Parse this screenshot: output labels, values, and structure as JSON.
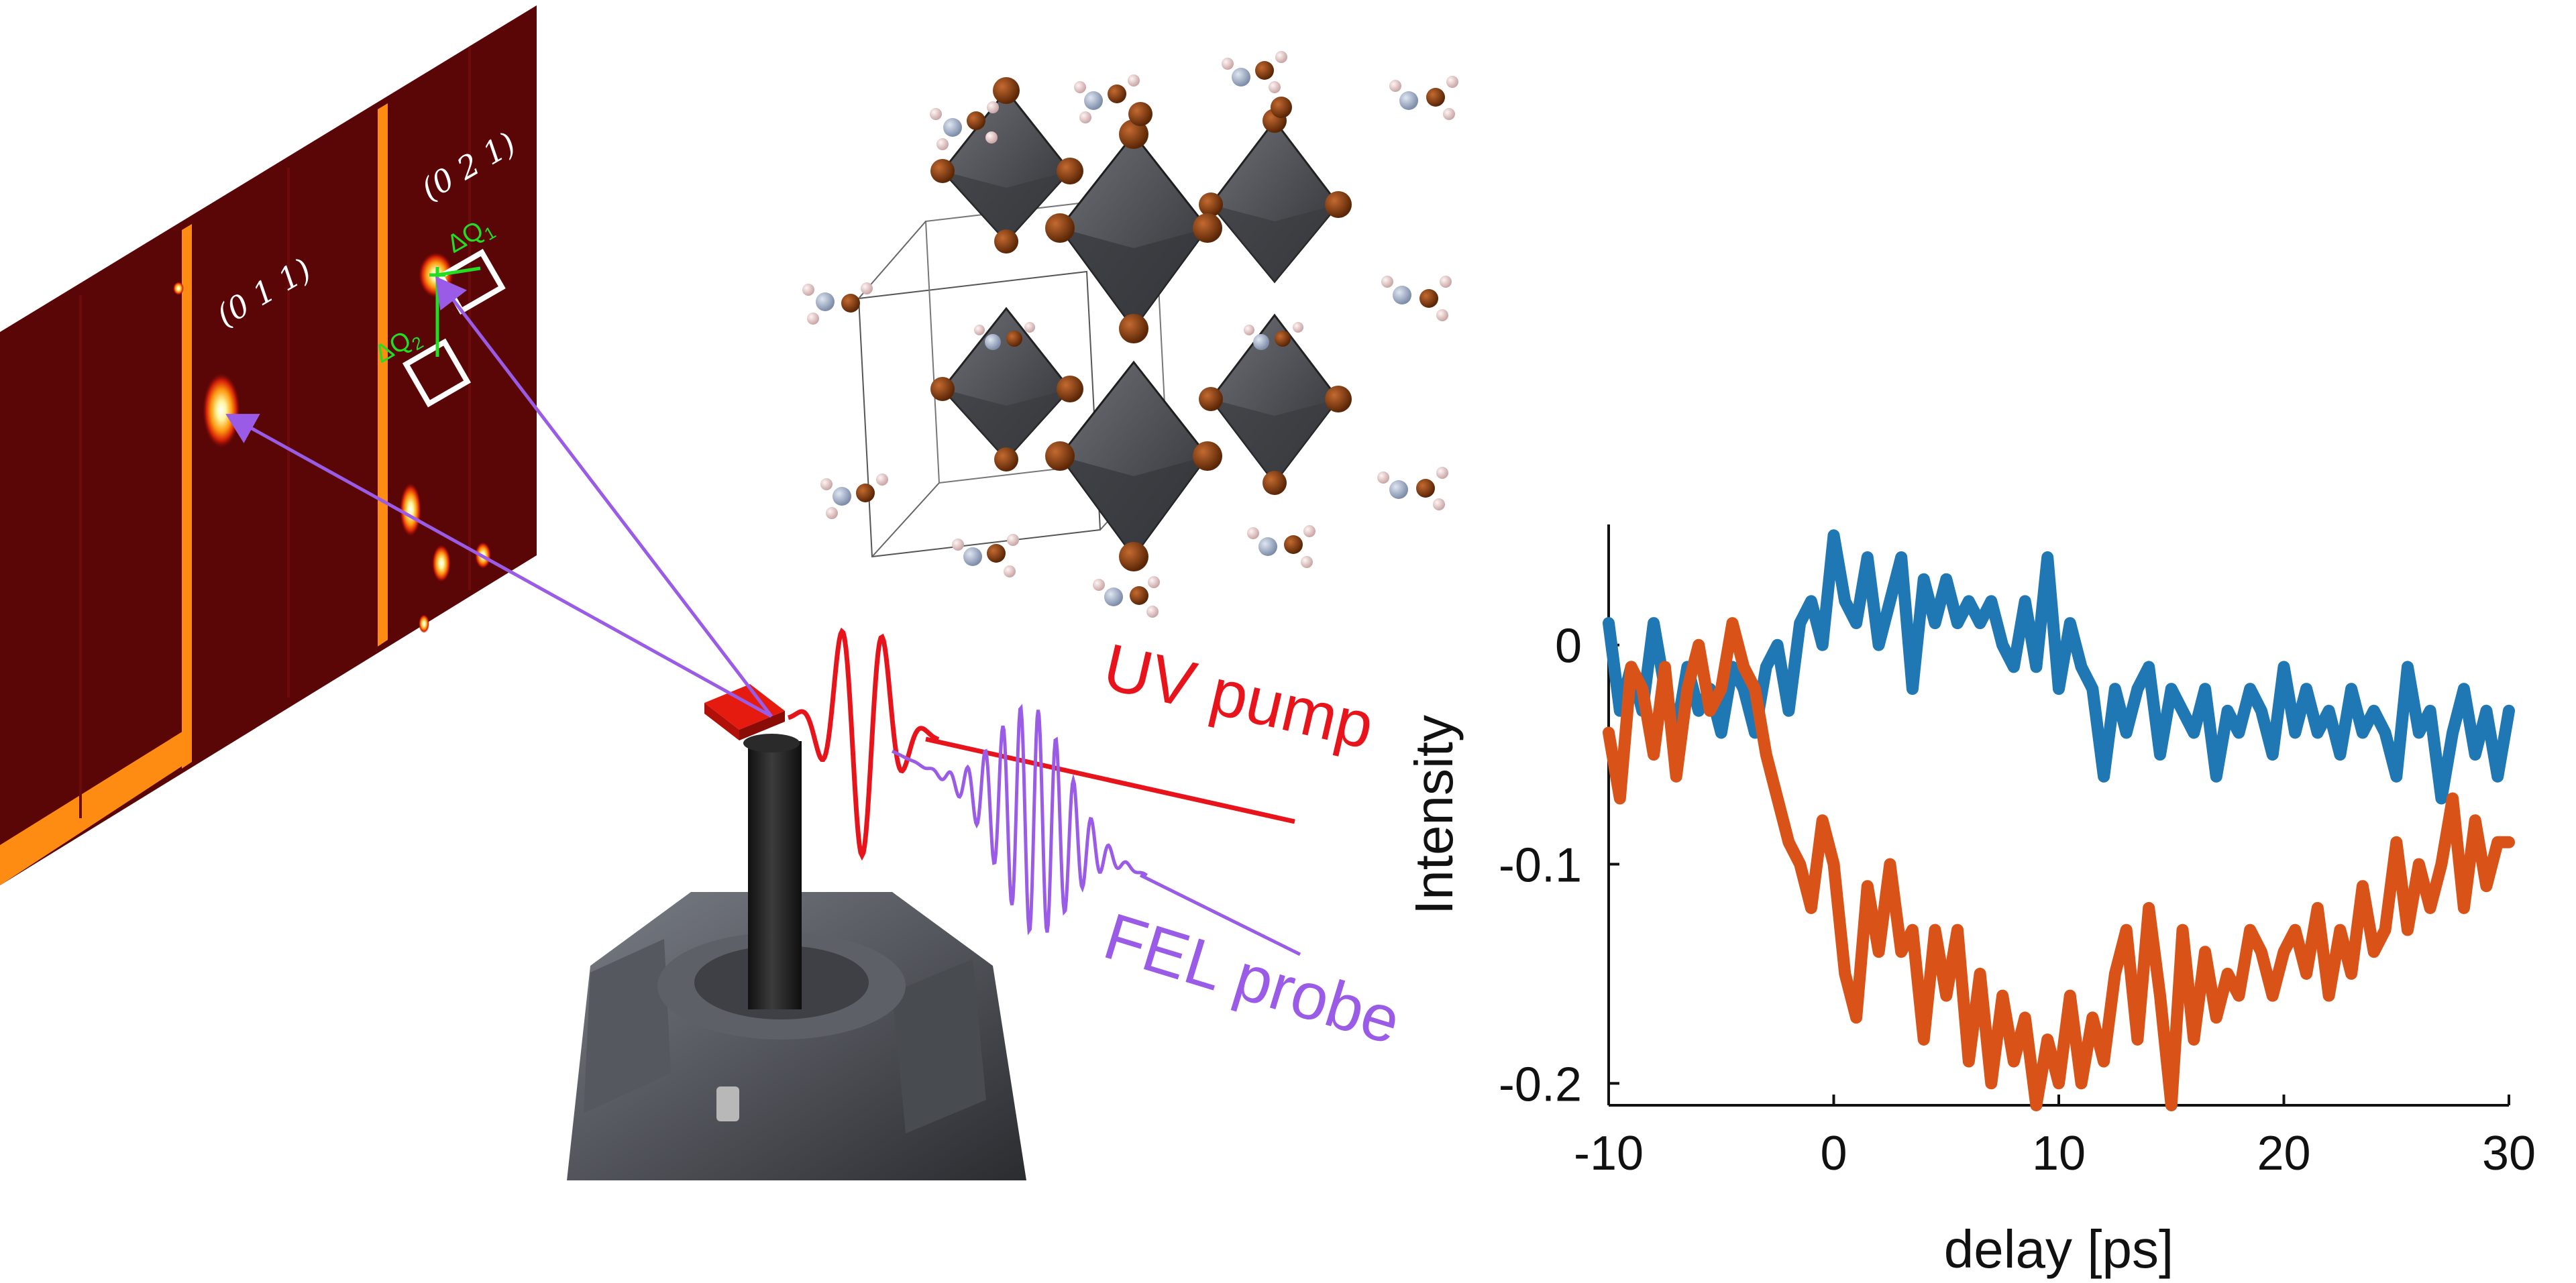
{
  "detector": {
    "peak_labels": [
      "(0 1 1)",
      "(0 2 1)"
    ],
    "delta_labels": [
      "ΔQ",
      "ΔQ"
    ],
    "delta_subscripts": [
      "1",
      "2"
    ]
  },
  "beams": {
    "uv_label": "UV pump",
    "fel_label": "FEL probe",
    "uv_color": "#e8141c",
    "fel_color": "#9a5ce6"
  },
  "colors": {
    "detector_bg": "#5a0606",
    "detector_stripe": "#ff8c12",
    "arrow": "#9a5ce6",
    "octahedron": "#4a4c52",
    "halide_atom": "#7a3a10",
    "series_blue": "#1f77b4",
    "series_orange": "#d95319"
  },
  "chart_data": {
    "type": "line",
    "title": "",
    "xlabel": "delay [ps]",
    "ylabel": "Intensity",
    "xlim": [
      -10,
      30
    ],
    "ylim": [
      -0.21,
      0.055
    ],
    "xticks": [
      -10,
      0,
      10,
      20,
      30
    ],
    "yticks": [
      0,
      -0.1,
      -0.2
    ],
    "xtick_labels": [
      "-10",
      "0",
      "10",
      "20",
      "30"
    ],
    "ytick_labels": [
      "0",
      "-0.1",
      "-0.2"
    ],
    "series": [
      {
        "name": "(0 2 1)",
        "color": "#1f77b4",
        "x": [
          -10,
          -9.5,
          -9,
          -8.5,
          -8,
          -7.5,
          -7,
          -6.5,
          -6,
          -5.5,
          -5,
          -4.5,
          -4,
          -3.5,
          -3,
          -2.5,
          -2,
          -1.5,
          -1,
          -0.5,
          0,
          0.5,
          1,
          1.5,
          2,
          2.5,
          3,
          3.5,
          4,
          4.5,
          5,
          5.5,
          6,
          6.5,
          7,
          7.5,
          8,
          8.5,
          9,
          9.5,
          10,
          10.5,
          11,
          11.5,
          12,
          12.5,
          13,
          13.5,
          14,
          14.5,
          15,
          15.5,
          16,
          16.5,
          17,
          17.5,
          18,
          18.5,
          19,
          19.5,
          20,
          20.5,
          21,
          21.5,
          22,
          22.5,
          23,
          23.5,
          24,
          24.5,
          25,
          25.5,
          26,
          26.5,
          27,
          27.5,
          28,
          28.5,
          29,
          29.5,
          30
        ],
        "values": [
          0.01,
          -0.03,
          -0.01,
          -0.03,
          0.01,
          -0.02,
          -0.04,
          -0.01,
          -0.03,
          -0.02,
          -0.04,
          -0.01,
          -0.02,
          -0.04,
          -0.01,
          0.0,
          -0.03,
          0.01,
          0.02,
          0.0,
          0.05,
          0.02,
          0.01,
          0.04,
          0.0,
          0.02,
          0.04,
          -0.02,
          0.03,
          0.01,
          0.03,
          0.01,
          0.02,
          0.01,
          0.02,
          0.0,
          -0.01,
          0.02,
          -0.01,
          0.04,
          -0.02,
          0.01,
          -0.01,
          -0.02,
          -0.06,
          -0.02,
          -0.04,
          -0.02,
          -0.01,
          -0.05,
          -0.02,
          -0.03,
          -0.04,
          -0.02,
          -0.06,
          -0.03,
          -0.04,
          -0.02,
          -0.03,
          -0.05,
          -0.01,
          -0.04,
          -0.02,
          -0.04,
          -0.03,
          -0.05,
          -0.02,
          -0.04,
          -0.03,
          -0.04,
          -0.06,
          -0.01,
          -0.04,
          -0.03,
          -0.07,
          -0.04,
          -0.02,
          -0.05,
          -0.03,
          -0.06,
          -0.03
        ]
      },
      {
        "name": "(0 1 1)",
        "color": "#d95319",
        "x": [
          -10,
          -9.5,
          -9,
          -8.5,
          -8,
          -7.5,
          -7,
          -6.5,
          -6,
          -5.5,
          -5,
          -4.5,
          -4,
          -3.5,
          -3,
          -2.5,
          -2,
          -1.5,
          -1,
          -0.5,
          0,
          0.5,
          1,
          1.5,
          2,
          2.5,
          3,
          3.5,
          4,
          4.5,
          5,
          5.5,
          6,
          6.5,
          7,
          7.5,
          8,
          8.5,
          9,
          9.5,
          10,
          10.5,
          11,
          11.5,
          12,
          12.5,
          13,
          13.5,
          14,
          14.5,
          15,
          15.5,
          16,
          16.5,
          17,
          17.5,
          18,
          18.5,
          19,
          19.5,
          20,
          20.5,
          21,
          21.5,
          22,
          22.5,
          23,
          23.5,
          24,
          24.5,
          25,
          25.5,
          26,
          26.5,
          27,
          27.5,
          28,
          28.5,
          29,
          29.5,
          30
        ],
        "values": [
          -0.04,
          -0.07,
          -0.01,
          -0.02,
          -0.05,
          -0.01,
          -0.06,
          -0.02,
          0.0,
          -0.03,
          -0.02,
          0.01,
          -0.01,
          -0.02,
          -0.05,
          -0.07,
          -0.09,
          -0.1,
          -0.12,
          -0.08,
          -0.1,
          -0.15,
          -0.17,
          -0.11,
          -0.14,
          -0.1,
          -0.14,
          -0.13,
          -0.18,
          -0.13,
          -0.16,
          -0.13,
          -0.19,
          -0.15,
          -0.2,
          -0.16,
          -0.19,
          -0.17,
          -0.21,
          -0.18,
          -0.2,
          -0.16,
          -0.2,
          -0.17,
          -0.19,
          -0.15,
          -0.13,
          -0.18,
          -0.12,
          -0.16,
          -0.21,
          -0.13,
          -0.18,
          -0.14,
          -0.17,
          -0.15,
          -0.16,
          -0.13,
          -0.14,
          -0.16,
          -0.14,
          -0.13,
          -0.15,
          -0.12,
          -0.16,
          -0.13,
          -0.15,
          -0.11,
          -0.14,
          -0.13,
          -0.09,
          -0.13,
          -0.1,
          -0.12,
          -0.1,
          -0.07,
          -0.12,
          -0.08,
          -0.11,
          -0.09,
          -0.09
        ]
      }
    ]
  }
}
